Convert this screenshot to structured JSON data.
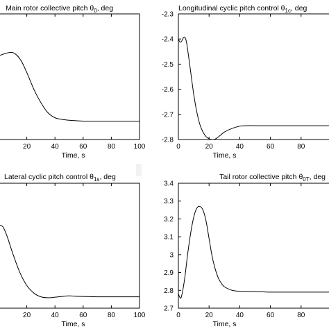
{
  "chart_data": [
    {
      "type": "line",
      "title": "Main rotor collective pitch",
      "title_symbol": "θ",
      "title_subscript": "0",
      "title_suffix": ", deg",
      "xlabel": "Time, s",
      "xlim": [
        0,
        100
      ],
      "xticks": [
        "20",
        "40",
        "60",
        "80",
        "100"
      ],
      "yticks": [],
      "grid": false,
      "series": [
        {
          "x": [
            0,
            8,
            12,
            16,
            20,
            25,
            30,
            35,
            40,
            45,
            50,
            60,
            70,
            80,
            90,
            100
          ],
          "y": [
            0.08,
            0.1,
            0.09,
            0.05,
            -0.02,
            -0.12,
            -0.2,
            -0.26,
            -0.29,
            -0.3,
            -0.305,
            -0.31,
            -0.31,
            -0.31,
            -0.31,
            -0.31
          ]
        }
      ]
    },
    {
      "type": "line",
      "title": "Longitudinal cyclic pitch control",
      "title_symbol": "θ",
      "title_subscript": "1c",
      "title_suffix": ", deg",
      "xlabel": "Time, s",
      "xlim": [
        0,
        100
      ],
      "ylim": [
        -2.8,
        -2.3
      ],
      "xticks": [
        "0",
        "20",
        "40",
        "60",
        "80"
      ],
      "yticks": [
        "-2.3",
        "-2.4",
        "-2.5",
        "-2.6",
        "-2.7",
        "-2.8"
      ],
      "grid": false,
      "series": [
        {
          "x": [
            0,
            1,
            2,
            3,
            4,
            5,
            6,
            8,
            10,
            12,
            14,
            16,
            18,
            20,
            22,
            24,
            26,
            28,
            30,
            35,
            40,
            45,
            50,
            60,
            70,
            80,
            90,
            100
          ],
          "y": [
            -2.4,
            -2.412,
            -2.41,
            -2.398,
            -2.392,
            -2.405,
            -2.44,
            -2.53,
            -2.62,
            -2.69,
            -2.74,
            -2.77,
            -2.788,
            -2.797,
            -2.8,
            -2.798,
            -2.79,
            -2.78,
            -2.77,
            -2.756,
            -2.747,
            -2.745,
            -2.745,
            -2.745,
            -2.745,
            -2.745,
            -2.745,
            -2.745
          ]
        }
      ]
    },
    {
      "type": "line",
      "title": "Lateral cyclic pitch control",
      "title_symbol": "θ",
      "title_subscript": "1s",
      "title_suffix": ", deg",
      "xlabel": "Time, s",
      "xlim": [
        0,
        100
      ],
      "xticks": [
        "20",
        "40",
        "60",
        "80",
        "100"
      ],
      "yticks": [],
      "grid": false,
      "series": [
        {
          "x": [
            0,
            3,
            6,
            10,
            15,
            20,
            25,
            30,
            35,
            40,
            45,
            50,
            55,
            60,
            70,
            80,
            90,
            100
          ],
          "y": [
            0.12,
            0.11,
            0.06,
            -0.03,
            -0.13,
            -0.2,
            -0.24,
            -0.26,
            -0.265,
            -0.262,
            -0.258,
            -0.255,
            -0.257,
            -0.258,
            -0.26,
            -0.26,
            -0.26,
            -0.26
          ]
        }
      ]
    },
    {
      "type": "line",
      "title": "Tail rotor collective pitch",
      "title_symbol": "θ",
      "title_subscript": "0T",
      "title_suffix": ", deg",
      "xlabel": "Time, s",
      "xlim": [
        0,
        100
      ],
      "ylim": [
        2.7,
        3.4
      ],
      "xticks": [
        "0",
        "20",
        "40",
        "60",
        "80"
      ],
      "yticks": [
        "3.4",
        "3.3",
        "3.2",
        "3.1",
        "3",
        "2.9",
        "2.8",
        "2.7"
      ],
      "grid": false,
      "series": [
        {
          "x": [
            0,
            1,
            2,
            4,
            6,
            8,
            10,
            12,
            14,
            16,
            18,
            20,
            22,
            24,
            26,
            28,
            30,
            35,
            40,
            50,
            60,
            70,
            80,
            90,
            100
          ],
          "y": [
            2.78,
            2.76,
            2.765,
            2.86,
            3.0,
            3.12,
            3.21,
            3.26,
            3.27,
            3.25,
            3.19,
            3.09,
            2.99,
            2.92,
            2.87,
            2.84,
            2.82,
            2.8,
            2.795,
            2.793,
            2.79,
            2.79,
            2.79,
            2.79,
            2.79
          ]
        }
      ]
    }
  ]
}
